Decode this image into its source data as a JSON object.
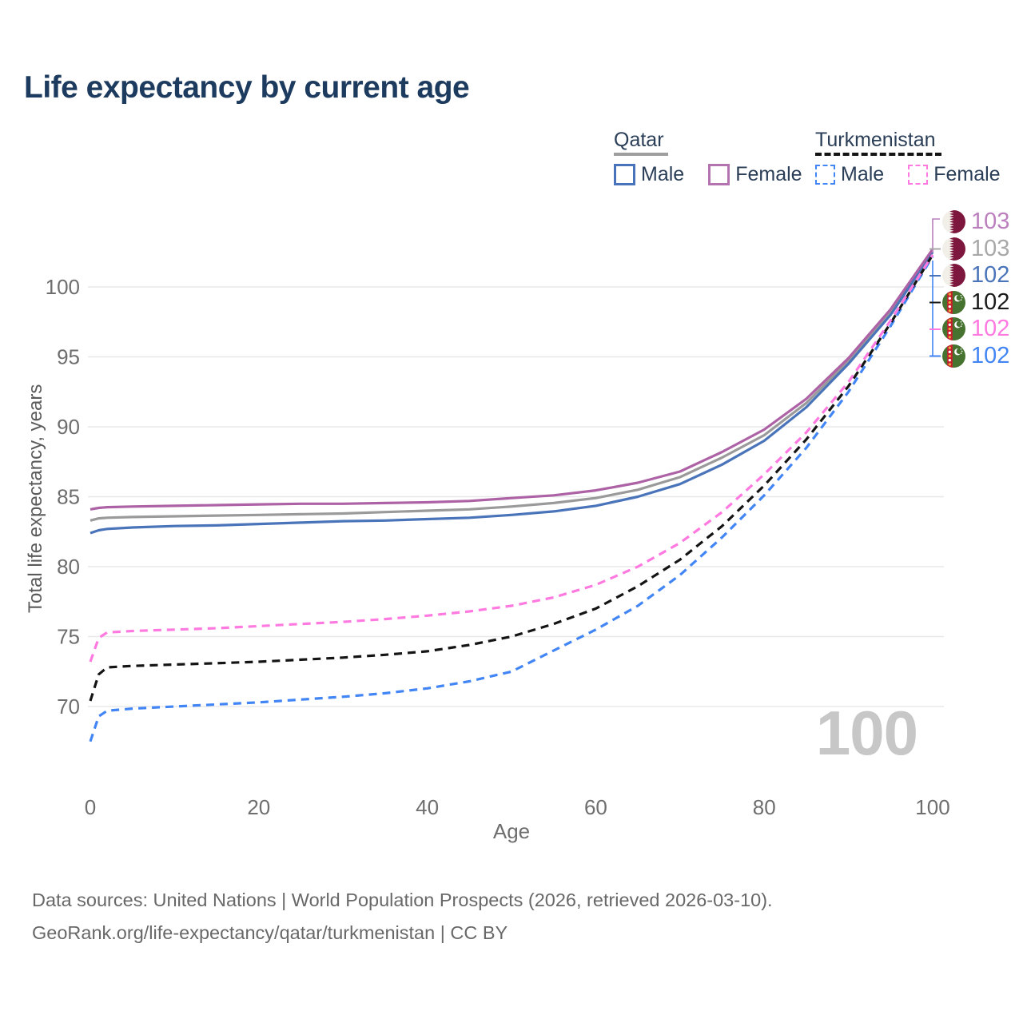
{
  "title": "Life expectancy by current age",
  "watermark": "100",
  "legend": {
    "groups": [
      {
        "title": "Qatar",
        "underline_style": "solid",
        "underline_color": "#9e9e9e",
        "items": [
          {
            "label": "Male",
            "color": "#4a74b9",
            "style": "solid"
          },
          {
            "label": "Female",
            "color": "#b273ae",
            "style": "solid"
          }
        ]
      },
      {
        "title": "Turkmenistan",
        "underline_style": "dashed",
        "underline_color": "#141414",
        "items": [
          {
            "label": "Male",
            "color": "#4285f4",
            "style": "dashed"
          },
          {
            "label": "Female",
            "color": "#ff7ae0",
            "style": "dashed"
          }
        ]
      }
    ]
  },
  "chart_data": {
    "type": "line",
    "title": "Life expectancy by current age",
    "xlabel": "Age",
    "ylabel": "Total life expectancy, years",
    "xlim": [
      0,
      100
    ],
    "ylim": [
      66.5,
      103.5
    ],
    "x_ticks": [
      0,
      20,
      40,
      60,
      80,
      100
    ],
    "y_ticks": [
      70,
      75,
      80,
      85,
      90,
      95,
      100
    ],
    "grid": "horizontal-only",
    "legend_position": "top-right",
    "ages": [
      0,
      1,
      2,
      5,
      10,
      15,
      20,
      25,
      30,
      35,
      40,
      45,
      50,
      55,
      60,
      65,
      70,
      75,
      80,
      85,
      90,
      95,
      100
    ],
    "series": [
      {
        "name": "Qatar (both sexes)",
        "country": "Qatar",
        "sex": "All",
        "style": "solid",
        "color": "#9a9a9a",
        "end_label": "103",
        "values": [
          83.3,
          83.45,
          83.5,
          83.55,
          83.6,
          83.65,
          83.7,
          83.75,
          83.8,
          83.9,
          84.0,
          84.1,
          84.3,
          84.55,
          84.9,
          85.5,
          86.4,
          87.8,
          89.4,
          91.7,
          94.7,
          98.2,
          102.6
        ]
      },
      {
        "name": "Qatar Male",
        "country": "Qatar",
        "sex": "Male",
        "style": "solid",
        "color": "#4a74b9",
        "end_label": "102",
        "values": [
          82.4,
          82.6,
          82.7,
          82.8,
          82.9,
          82.95,
          83.05,
          83.15,
          83.25,
          83.3,
          83.4,
          83.5,
          83.7,
          83.95,
          84.35,
          85.0,
          85.9,
          87.3,
          89.0,
          91.4,
          94.5,
          98.0,
          102.5
        ]
      },
      {
        "name": "Qatar Female",
        "country": "Qatar",
        "sex": "Female",
        "style": "solid",
        "color": "#ad62a6",
        "end_label": "103",
        "values": [
          84.1,
          84.2,
          84.25,
          84.3,
          84.35,
          84.4,
          84.45,
          84.5,
          84.5,
          84.55,
          84.6,
          84.7,
          84.9,
          85.1,
          85.45,
          86.0,
          86.8,
          88.2,
          89.8,
          92.0,
          94.9,
          98.4,
          102.7
        ]
      },
      {
        "name": "Turkmenistan Male",
        "country": "Turkmenistan",
        "sex": "Male",
        "style": "dashed",
        "color": "#4285f4",
        "end_label": "102",
        "values": [
          67.5,
          69.3,
          69.7,
          69.85,
          70.0,
          70.15,
          70.3,
          70.5,
          70.7,
          70.95,
          71.3,
          71.8,
          72.5,
          74.0,
          75.5,
          77.2,
          79.4,
          82.1,
          85.1,
          88.5,
          92.5,
          97.2,
          102.2
        ]
      },
      {
        "name": "Turkmenistan (both sexes)",
        "country": "Turkmenistan",
        "sex": "All",
        "style": "dashed",
        "color": "#141414",
        "end_label": "102",
        "values": [
          70.4,
          72.3,
          72.8,
          72.9,
          73.0,
          73.1,
          73.2,
          73.35,
          73.5,
          73.7,
          73.95,
          74.4,
          75.0,
          75.9,
          77.0,
          78.6,
          80.5,
          82.9,
          85.8,
          89.1,
          92.9,
          97.4,
          102.3
        ]
      },
      {
        "name": "Turkmenistan Female",
        "country": "Turkmenistan",
        "sex": "Female",
        "style": "dashed",
        "color": "#ff7ae0",
        "end_label": "102",
        "values": [
          73.2,
          74.9,
          75.3,
          75.4,
          75.5,
          75.6,
          75.75,
          75.9,
          76.05,
          76.25,
          76.5,
          76.8,
          77.2,
          77.8,
          78.7,
          80.0,
          81.7,
          83.9,
          86.6,
          89.6,
          93.2,
          97.6,
          102.3
        ]
      }
    ]
  },
  "end_labels": [
    {
      "value": "103",
      "flag": "qatar",
      "color": "#bb7fbe",
      "series": "Qatar Female"
    },
    {
      "value": "103",
      "flag": "qatar",
      "color": "#a8a8a8",
      "series": "Qatar (both sexes)"
    },
    {
      "value": "102",
      "flag": "qatar",
      "color": "#4a74b9",
      "series": "Qatar Male"
    },
    {
      "value": "102",
      "flag": "turkmenistan",
      "color": "#1a1a1a",
      "series": "Turkmenistan (both sexes)"
    },
    {
      "value": "102",
      "flag": "turkmenistan",
      "color": "#ff7ae0",
      "series": "Turkmenistan Female"
    },
    {
      "value": "102",
      "flag": "turkmenistan",
      "color": "#4285f4",
      "series": "Turkmenistan Male"
    }
  ],
  "footer": {
    "line1": "Data sources: United Nations | World Population Prospects (2026, retrieved 2026-03-10).",
    "line2": "GeoRank.org/life-expectancy/qatar/turkmenistan | CC BY"
  }
}
